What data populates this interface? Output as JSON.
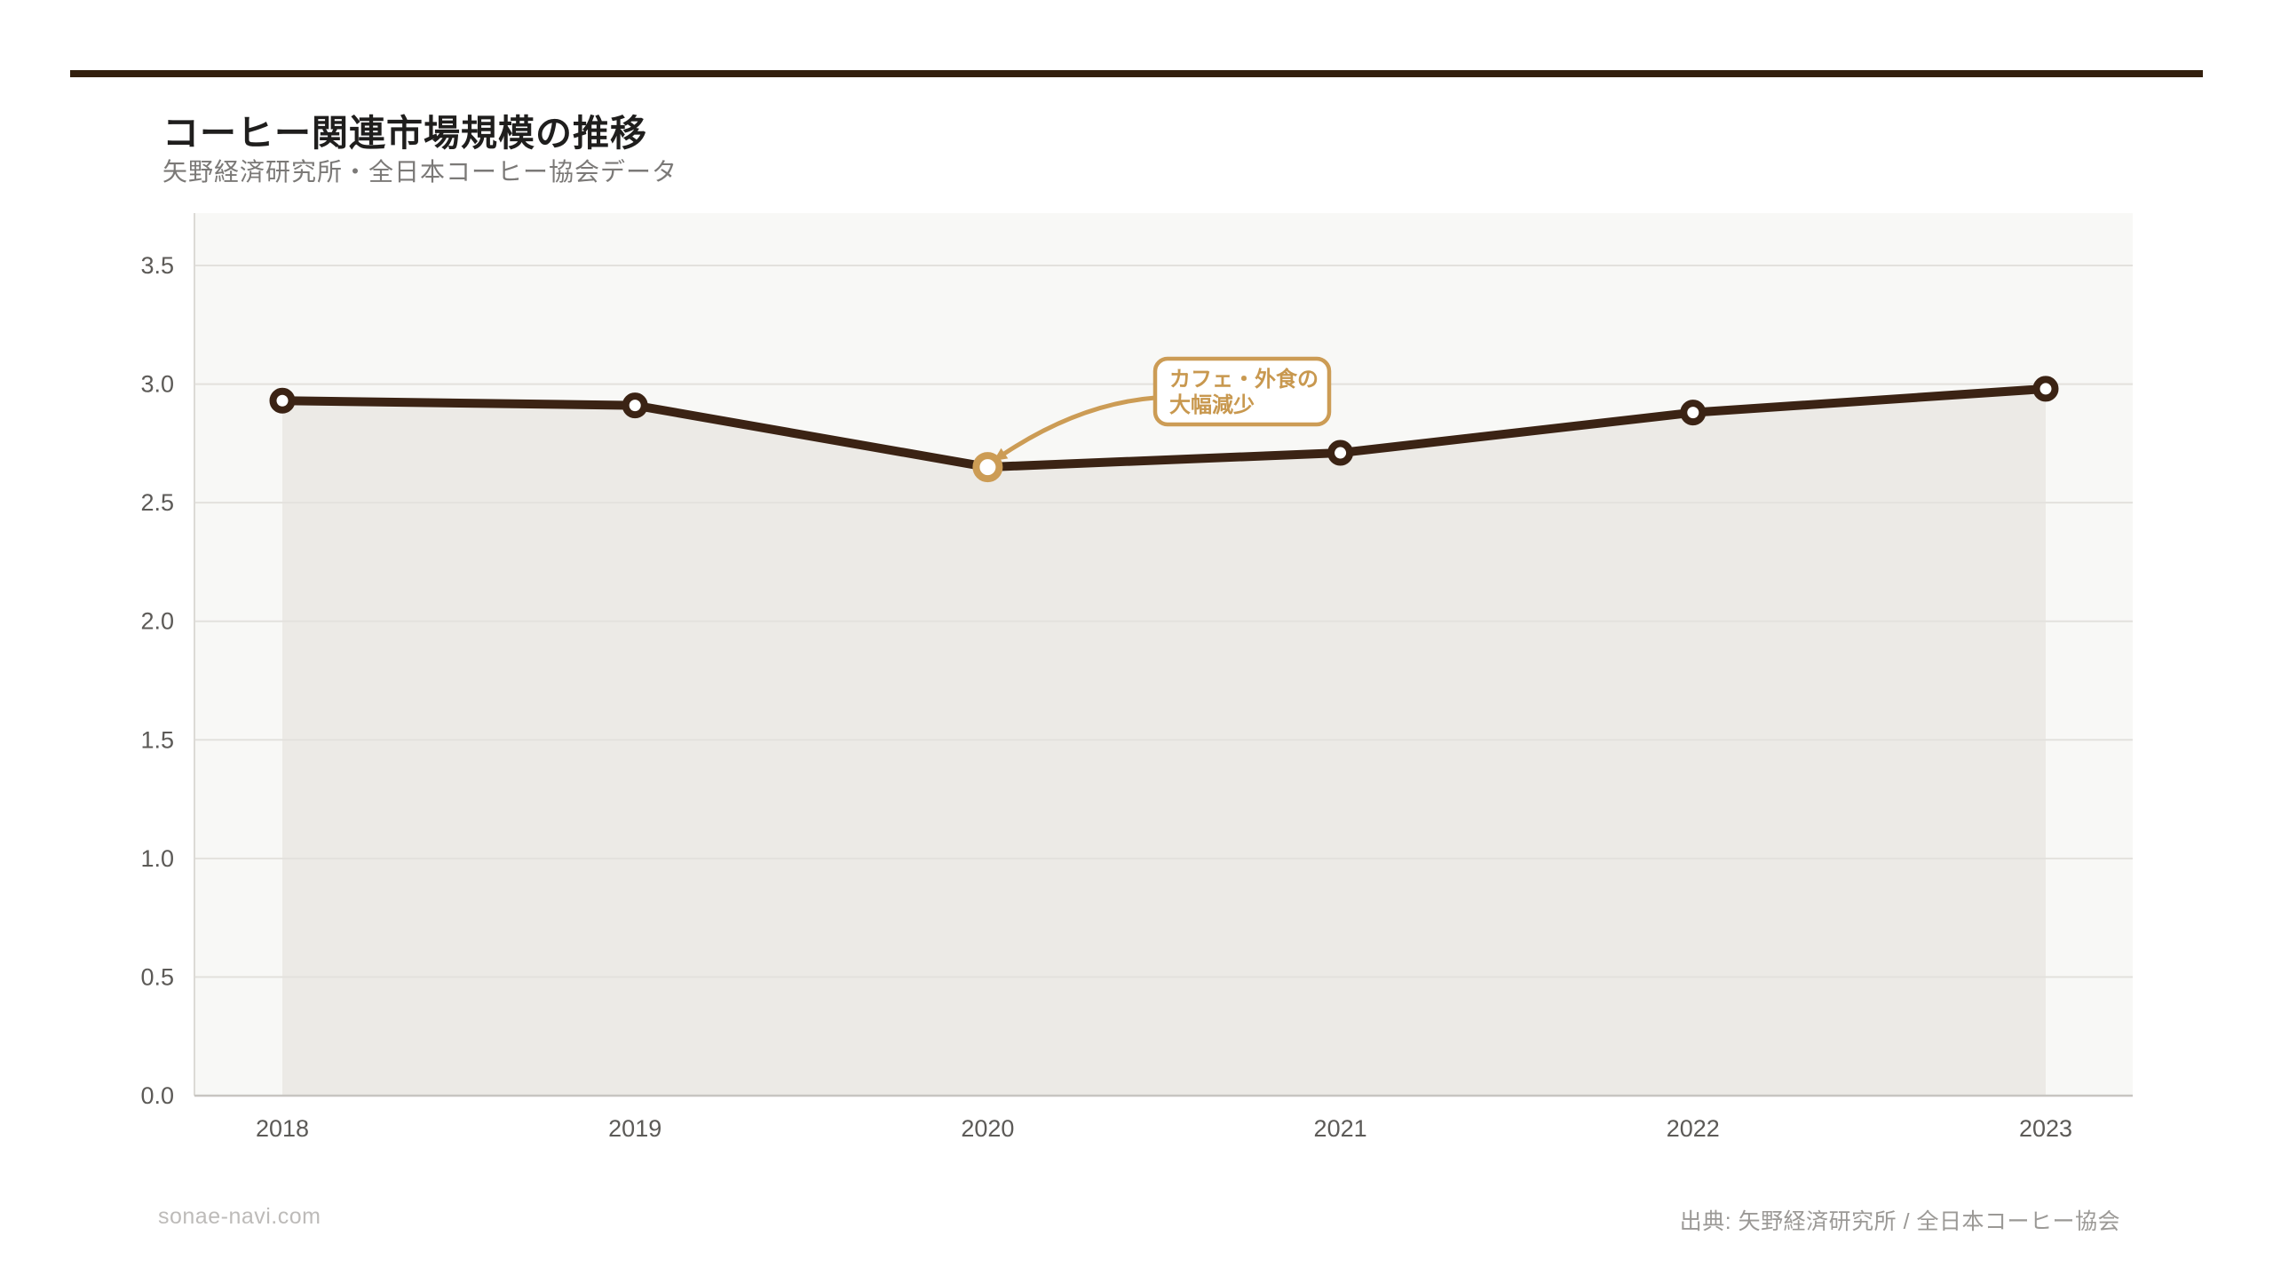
{
  "header": {
    "title": "コーヒー関連市場規模の推移",
    "subtitle": "矢野経済研究所・全日本コーヒー協会データ"
  },
  "footer": {
    "left": "sonae-navi.com",
    "right": "出典: 矢野経済研究所 / 全日本コーヒー協会"
  },
  "page": {
    "colors": {
      "accent_bar": "#33200e",
      "line": "#3b2314",
      "marker_fill": "#ffffff",
      "gold": "#cc9c55",
      "gold_text": "#c8984f",
      "area_fill": "#eceae6",
      "plot_bg": "#f8f8f6",
      "grid": "#e3e1dd",
      "axis_bottom": "#c7c5c1",
      "axis_left": "#dcdad6",
      "tick_text": "#5c5a57",
      "annotation_bg": "#ffffff"
    }
  },
  "chart_data": {
    "type": "line",
    "title": "コーヒー関連市場規模の推移",
    "xlabel": "",
    "ylabel": "",
    "x": [
      "2018",
      "2019",
      "2020",
      "2021",
      "2022",
      "2023"
    ],
    "series": [
      {
        "name": "コーヒー関連市場規模",
        "values": [
          2.93,
          2.91,
          2.65,
          2.71,
          2.88,
          2.98
        ]
      }
    ],
    "y_ticks": [
      "0.0",
      "0.5",
      "1.0",
      "1.5",
      "2.0",
      "2.5",
      "3.0",
      "3.5"
    ],
    "ylim": [
      0,
      3.72
    ],
    "grid": true,
    "area": true,
    "legend_position": "none",
    "highlight_index": 2,
    "annotation": {
      "lines": [
        "カフェ・外食の",
        "大幅減少"
      ],
      "target_year": "2020"
    }
  }
}
